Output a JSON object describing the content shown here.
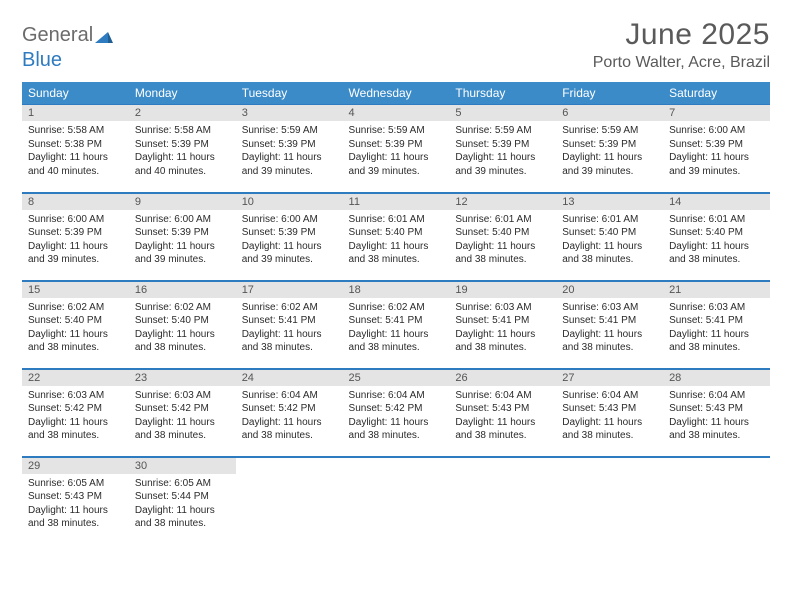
{
  "brand": {
    "part1": "General",
    "part2": "Blue"
  },
  "title": "June 2025",
  "location": "Porto Walter, Acre, Brazil",
  "colors": {
    "header_bg": "#3b8bc9",
    "header_text": "#ffffff",
    "daynum_bg": "#e4e4e4",
    "row_border": "#2f7bbf",
    "brand_gray": "#6b6b6b",
    "brand_blue": "#2f7bbf",
    "title_color": "#5a5a5a",
    "body_text": "#2b2b2b",
    "page_bg": "#ffffff"
  },
  "daysOfWeek": [
    "Sunday",
    "Monday",
    "Tuesday",
    "Wednesday",
    "Thursday",
    "Friday",
    "Saturday"
  ],
  "days": [
    {
      "n": "1",
      "sunrise": "5:58 AM",
      "sunset": "5:38 PM",
      "daylight": "11 hours and 40 minutes."
    },
    {
      "n": "2",
      "sunrise": "5:58 AM",
      "sunset": "5:39 PM",
      "daylight": "11 hours and 40 minutes."
    },
    {
      "n": "3",
      "sunrise": "5:59 AM",
      "sunset": "5:39 PM",
      "daylight": "11 hours and 39 minutes."
    },
    {
      "n": "4",
      "sunrise": "5:59 AM",
      "sunset": "5:39 PM",
      "daylight": "11 hours and 39 minutes."
    },
    {
      "n": "5",
      "sunrise": "5:59 AM",
      "sunset": "5:39 PM",
      "daylight": "11 hours and 39 minutes."
    },
    {
      "n": "6",
      "sunrise": "5:59 AM",
      "sunset": "5:39 PM",
      "daylight": "11 hours and 39 minutes."
    },
    {
      "n": "7",
      "sunrise": "6:00 AM",
      "sunset": "5:39 PM",
      "daylight": "11 hours and 39 minutes."
    },
    {
      "n": "8",
      "sunrise": "6:00 AM",
      "sunset": "5:39 PM",
      "daylight": "11 hours and 39 minutes."
    },
    {
      "n": "9",
      "sunrise": "6:00 AM",
      "sunset": "5:39 PM",
      "daylight": "11 hours and 39 minutes."
    },
    {
      "n": "10",
      "sunrise": "6:00 AM",
      "sunset": "5:39 PM",
      "daylight": "11 hours and 39 minutes."
    },
    {
      "n": "11",
      "sunrise": "6:01 AM",
      "sunset": "5:40 PM",
      "daylight": "11 hours and 38 minutes."
    },
    {
      "n": "12",
      "sunrise": "6:01 AM",
      "sunset": "5:40 PM",
      "daylight": "11 hours and 38 minutes."
    },
    {
      "n": "13",
      "sunrise": "6:01 AM",
      "sunset": "5:40 PM",
      "daylight": "11 hours and 38 minutes."
    },
    {
      "n": "14",
      "sunrise": "6:01 AM",
      "sunset": "5:40 PM",
      "daylight": "11 hours and 38 minutes."
    },
    {
      "n": "15",
      "sunrise": "6:02 AM",
      "sunset": "5:40 PM",
      "daylight": "11 hours and 38 minutes."
    },
    {
      "n": "16",
      "sunrise": "6:02 AM",
      "sunset": "5:40 PM",
      "daylight": "11 hours and 38 minutes."
    },
    {
      "n": "17",
      "sunrise": "6:02 AM",
      "sunset": "5:41 PM",
      "daylight": "11 hours and 38 minutes."
    },
    {
      "n": "18",
      "sunrise": "6:02 AM",
      "sunset": "5:41 PM",
      "daylight": "11 hours and 38 minutes."
    },
    {
      "n": "19",
      "sunrise": "6:03 AM",
      "sunset": "5:41 PM",
      "daylight": "11 hours and 38 minutes."
    },
    {
      "n": "20",
      "sunrise": "6:03 AM",
      "sunset": "5:41 PM",
      "daylight": "11 hours and 38 minutes."
    },
    {
      "n": "21",
      "sunrise": "6:03 AM",
      "sunset": "5:41 PM",
      "daylight": "11 hours and 38 minutes."
    },
    {
      "n": "22",
      "sunrise": "6:03 AM",
      "sunset": "5:42 PM",
      "daylight": "11 hours and 38 minutes."
    },
    {
      "n": "23",
      "sunrise": "6:03 AM",
      "sunset": "5:42 PM",
      "daylight": "11 hours and 38 minutes."
    },
    {
      "n": "24",
      "sunrise": "6:04 AM",
      "sunset": "5:42 PM",
      "daylight": "11 hours and 38 minutes."
    },
    {
      "n": "25",
      "sunrise": "6:04 AM",
      "sunset": "5:42 PM",
      "daylight": "11 hours and 38 minutes."
    },
    {
      "n": "26",
      "sunrise": "6:04 AM",
      "sunset": "5:43 PM",
      "daylight": "11 hours and 38 minutes."
    },
    {
      "n": "27",
      "sunrise": "6:04 AM",
      "sunset": "5:43 PM",
      "daylight": "11 hours and 38 minutes."
    },
    {
      "n": "28",
      "sunrise": "6:04 AM",
      "sunset": "5:43 PM",
      "daylight": "11 hours and 38 minutes."
    },
    {
      "n": "29",
      "sunrise": "6:05 AM",
      "sunset": "5:43 PM",
      "daylight": "11 hours and 38 minutes."
    },
    {
      "n": "30",
      "sunrise": "6:05 AM",
      "sunset": "5:44 PM",
      "daylight": "11 hours and 38 minutes."
    }
  ],
  "labels": {
    "sunrise": "Sunrise:",
    "sunset": "Sunset:",
    "daylight": "Daylight:"
  },
  "layout": {
    "firstDayOffset": 0,
    "weeks": 5,
    "cols": 7
  }
}
